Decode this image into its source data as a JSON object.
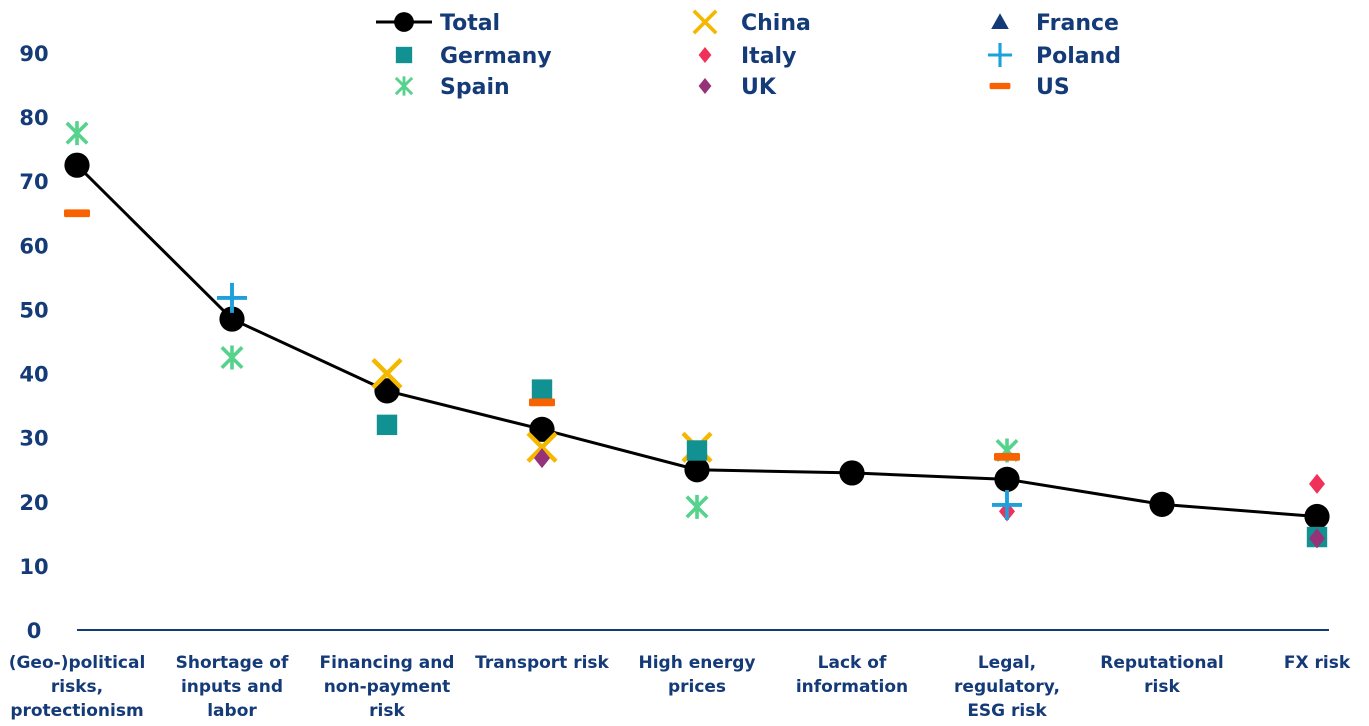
{
  "chart_data": {
    "type": "line",
    "title": "",
    "xlabel": "",
    "ylabel": "",
    "ylim": [
      0,
      90
    ],
    "yticks": [
      0,
      10,
      20,
      30,
      40,
      50,
      60,
      70,
      80,
      90
    ],
    "grid": false,
    "legend_position": "top",
    "categories": [
      [
        "(Geo-)political",
        "risks,",
        "protectionism"
      ],
      [
        "Shortage of",
        "inputs and",
        "labor"
      ],
      [
        "Financing and",
        "non-payment",
        "risk"
      ],
      [
        "Transport risk"
      ],
      [
        "High energy",
        "prices"
      ],
      [
        "Lack of",
        "information"
      ],
      [
        "Legal,",
        "regulatory,",
        "ESG risk"
      ],
      [
        "Reputational",
        "risk"
      ],
      [
        "FX risk"
      ]
    ],
    "series": [
      {
        "name": "Total",
        "marker": "circle-line",
        "color": "#000000",
        "values": [
          72.5,
          48.5,
          37.3,
          31.3,
          25.0,
          24.5,
          23.5,
          19.6,
          17.7
        ]
      },
      {
        "name": "China",
        "marker": "x",
        "color": "#f5b800",
        "values": [
          null,
          null,
          40.0,
          28.5,
          28.5,
          null,
          null,
          null,
          null
        ]
      },
      {
        "name": "France",
        "marker": "triangle",
        "color": "#143b78",
        "values": [
          null,
          null,
          null,
          null,
          null,
          null,
          null,
          null,
          null
        ]
      },
      {
        "name": "Germany",
        "marker": "square",
        "color": "#119191",
        "values": [
          null,
          null,
          32.0,
          37.5,
          28.0,
          null,
          null,
          null,
          14.5
        ]
      },
      {
        "name": "Italy",
        "marker": "diamond",
        "color": "#f0325a",
        "values": [
          null,
          null,
          null,
          null,
          null,
          null,
          18.5,
          null,
          22.8
        ]
      },
      {
        "name": "Poland",
        "marker": "plus",
        "color": "#1ea0dc",
        "values": [
          null,
          51.8,
          null,
          null,
          null,
          null,
          19.5,
          null,
          null
        ]
      },
      {
        "name": "Spain",
        "marker": "asterisk",
        "color": "#55d28c",
        "values": [
          77.5,
          42.5,
          null,
          null,
          19.2,
          null,
          28.0,
          null,
          null
        ]
      },
      {
        "name": "UK",
        "marker": "diamond",
        "color": "#963278",
        "values": [
          null,
          null,
          null,
          26.8,
          null,
          null,
          null,
          null,
          14.3
        ]
      },
      {
        "name": "US",
        "marker": "dash",
        "color": "#f86200",
        "values": [
          65.0,
          null,
          null,
          35.5,
          null,
          null,
          27.0,
          null,
          null
        ]
      }
    ]
  }
}
